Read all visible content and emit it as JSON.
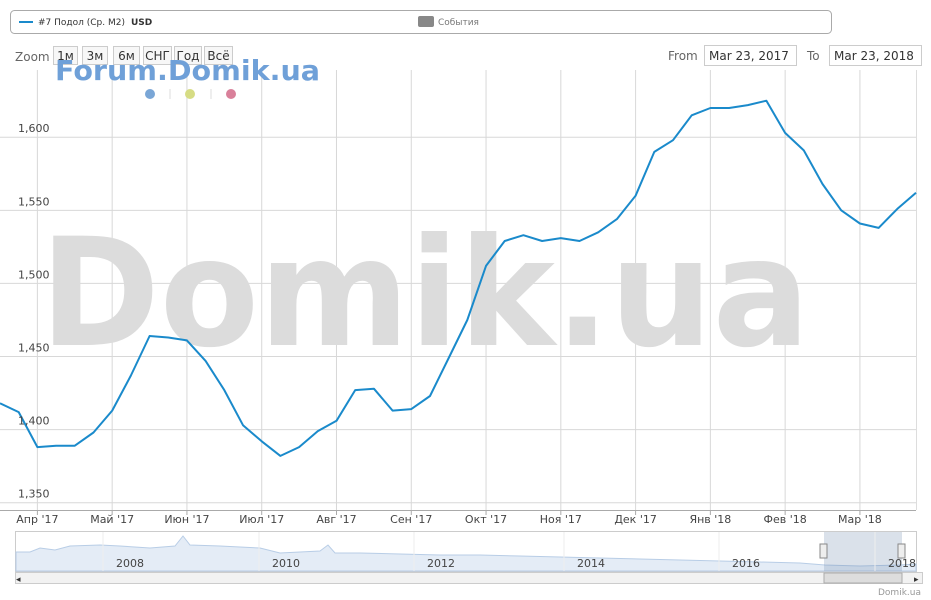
{
  "chart_data": {
    "type": "line",
    "legend": {
      "series_name": "#7 Подол (Ср. М2)",
      "unit": "USD",
      "events": "События"
    },
    "range_selector": {
      "label": "Zoom",
      "buttons": [
        "1м",
        "3м",
        "6м",
        "СНГ",
        "Год",
        "Всё"
      ],
      "from_label": "From",
      "from": "Mar 23, 2017",
      "to_label": "To",
      "to": "Mar 23, 2018"
    },
    "watermarks": [
      "Forum.Domik.ua",
      "Domik.ua"
    ],
    "navigator_years": [
      "2008",
      "2010",
      "2012",
      "2014",
      "2016",
      "2018"
    ],
    "credits": "Domik.ua",
    "categories": [
      null,
      null,
      "Апр '17",
      null,
      null,
      null,
      "Май '17",
      null,
      null,
      null,
      "Июн '17",
      null,
      null,
      null,
      "Июл '17",
      null,
      null,
      null,
      "Авг '17",
      null,
      null,
      null,
      "Сен '17",
      null,
      null,
      null,
      "Окт '17",
      null,
      null,
      null,
      "Ноя '17",
      null,
      null,
      null,
      "Дек '17",
      null,
      null,
      null,
      "Янв '18",
      null,
      null,
      null,
      "Фев '18",
      null,
      null,
      null,
      "Мар '18",
      null,
      null,
      null
    ],
    "series": [
      {
        "name": "#7 Подол (Ср. М2)",
        "color": "#1a8acb",
        "values": [
          1418,
          1412,
          1388,
          1389,
          1389,
          1398,
          1413,
          1437,
          1464,
          1463,
          1461,
          1447,
          1427,
          1403,
          1392,
          1382,
          1388,
          1399,
          1406,
          1427,
          1428,
          1413,
          1414,
          1423,
          1449,
          1475,
          1512,
          1529,
          1533,
          1529,
          1531,
          1529,
          1535,
          1544,
          1560,
          1590,
          1598,
          1615,
          1620,
          1620,
          1622,
          1625,
          1603,
          1591,
          1568,
          1550,
          1541,
          1538,
          1551,
          1562
        ]
      }
    ],
    "ylim": [
      1345,
      1646
    ],
    "yticks": [
      {
        "value": 1350,
        "label": "1,350"
      },
      {
        "value": 1400,
        "label": "1,400"
      },
      {
        "value": 1450,
        "label": "1,450"
      },
      {
        "value": 1500,
        "label": "1,500"
      },
      {
        "value": 1550,
        "label": "1,550"
      },
      {
        "value": 1600,
        "label": "1,600"
      }
    ],
    "grid": true
  }
}
